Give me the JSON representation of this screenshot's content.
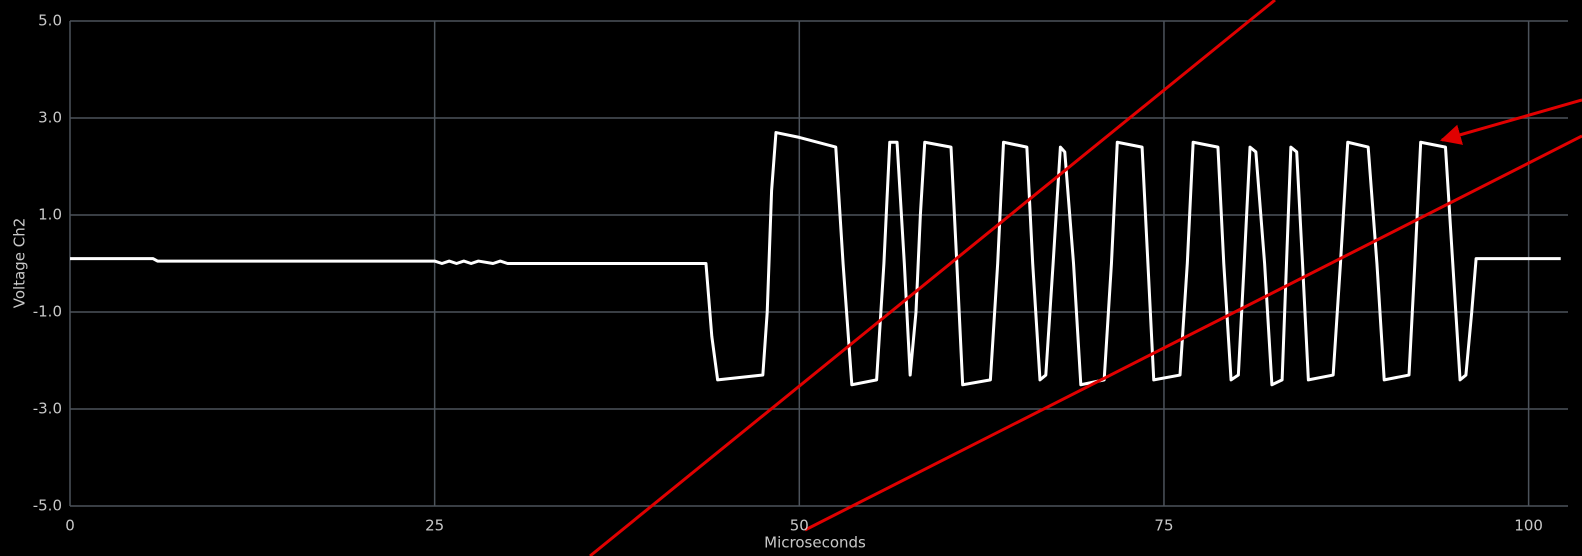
{
  "chart_data": {
    "type": "line",
    "x_label": "Microseconds",
    "y_label": "Voltage Ch2",
    "xlim": [
      0,
      102.7
    ],
    "ylim": [
      -5,
      5
    ],
    "xticks": [
      0,
      25,
      50,
      75,
      100
    ],
    "yticks": [
      {
        "value": -5,
        "label": "-5.0"
      },
      {
        "value": -3,
        "label": "-3.0"
      },
      {
        "value": -1,
        "label": "-1.0"
      },
      {
        "value": 1,
        "label": "1.0"
      },
      {
        "value": 3,
        "label": "3.0"
      },
      {
        "value": 5,
        "label": "5.0"
      }
    ],
    "grid": true,
    "series": [
      {
        "color": "#ffffff",
        "x": [
          0,
          5.7,
          6,
          25,
          25.5,
          26,
          26.5,
          27,
          27.5,
          28,
          29,
          29.5,
          30,
          43.6,
          44,
          44.4,
          47.5,
          47.8,
          48.1,
          48.4,
          50,
          52.5,
          53.0,
          53.6,
          55.3,
          55.8,
          56.2,
          56.7,
          57.2,
          57.6,
          58.0,
          58.3,
          58.6,
          60.4,
          60.8,
          61.2,
          63.1,
          63.6,
          64.0,
          65.6,
          66.0,
          66.5,
          66.9,
          67.4,
          67.9,
          68.2,
          68.8,
          69.3,
          70.9,
          71.4,
          71.8,
          73.5,
          73.9,
          74.3,
          76.1,
          76.6,
          77.0,
          78.7,
          79.1,
          79.6,
          80.1,
          80.5,
          80.9,
          81.3,
          81.9,
          82.4,
          83.1,
          83.4,
          83.7,
          84.1,
          84.5,
          84.9,
          86.6,
          87.1,
          87.6,
          89.0,
          89.6,
          90.1,
          91.8,
          92.2,
          92.6,
          94.3,
          94.8,
          95.3,
          95.7,
          96.1,
          96.4,
          102.2
        ],
        "values": [
          0.1,
          0.1,
          0.05,
          0.05,
          0,
          0.05,
          0,
          0.05,
          0,
          0.05,
          0,
          0.05,
          0,
          0,
          -1.5,
          -2.4,
          -2.3,
          -1,
          1.5,
          2.7,
          2.6,
          2.4,
          0,
          -2.5,
          -2.4,
          0,
          2.5,
          2.5,
          0,
          -2.3,
          -1,
          1,
          2.5,
          2.4,
          0,
          -2.5,
          -2.4,
          0,
          2.5,
          2.4,
          0,
          -2.4,
          -2.3,
          0,
          2.4,
          2.3,
          0,
          -2.5,
          -2.4,
          0,
          2.5,
          2.4,
          0,
          -2.4,
          -2.3,
          0,
          2.5,
          2.4,
          0,
          -2.4,
          -2.3,
          0,
          2.4,
          2.3,
          0,
          -2.5,
          -2.4,
          0,
          2.4,
          2.3,
          0,
          -2.4,
          -2.3,
          0,
          2.5,
          2.4,
          0,
          -2.4,
          -2.3,
          0,
          2.5,
          2.4,
          0,
          -2.4,
          -2.3,
          -1,
          0.1,
          0.1
        ]
      }
    ]
  }
}
